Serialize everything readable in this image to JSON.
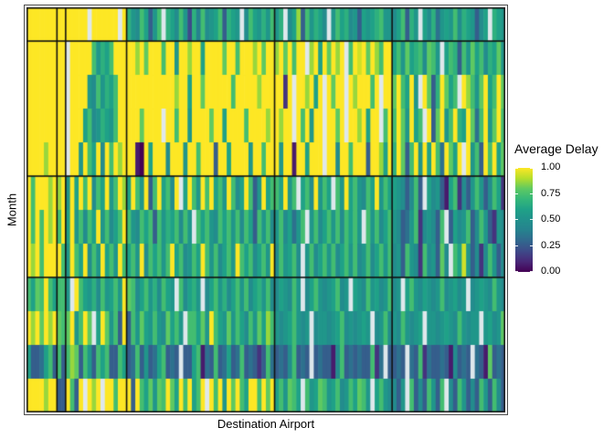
{
  "figure": {
    "background_color": "#ffffff",
    "panel_border_color": "#1a1a1a",
    "outer_border_color": "#4d4d4d"
  },
  "chart_data": {
    "type": "heatmap",
    "title": "",
    "xlabel": "Destination Airport",
    "ylabel": "Month",
    "legend_title": "Average Delay",
    "legend_labels": [
      "1.00",
      "0.75",
      "0.50",
      "0.25",
      "0.00"
    ],
    "legend_breaks": [
      1.0,
      0.75,
      0.5,
      0.25,
      0.0
    ],
    "value_domain": [
      0,
      1
    ],
    "x_tick_labels_shown": false,
    "y_tick_labels_shown": false,
    "grid": false,
    "legend_position": "right",
    "n_rows": 12,
    "n_cols": 110,
    "color_scale": {
      "name": "viridis",
      "stops": [
        "#440154",
        "#482878",
        "#3e4a89",
        "#31688e",
        "#26828e",
        "#21918c",
        "#1fa187",
        "#35b779",
        "#5ec962",
        "#b5de2b",
        "#fde725"
      ],
      "na_color": "#dfe8ec"
    },
    "encoding": "Each character of a segment string is one heatmap cell, left to right. Hex digit 0-f maps to Average Delay value digit/15 (0.00-1.00, viridis colored). '.' means missing value (white). Rows are months 1-12 top to bottom; column segments A-F are the airport groups left to right.",
    "col_group_order": [
      "A",
      "B",
      "C",
      "D",
      "E",
      "F"
    ],
    "col_group_sizes": {
      "A": 7,
      "B": 2,
      "C": 14,
      "D": 34,
      "E": 27,
      "F": 26
    },
    "row_group_breaks_after": [
      1,
      5,
      8
    ],
    "col_group_breaks_at": [
      7,
      9,
      23,
      57,
      84
    ],
    "rows": [
      {
        "month": 1,
        "segments": {
          "A": "fffffff",
          "B": "ff",
          "C": "fffff.ffffff.f",
          "D": "a87b948b.a97b83a6b789b4a98.7b98a8b",
          "E": "8a.79d4b8a97.8b9a784989ab88",
          "F": "79b4a8.97a5898b7a98479.a98"
        }
      },
      {
        "month": 2,
        "segments": {
          "A": "fffffff",
          "B": "ff",
          "C": ".fffffb8a9bfff",
          "D": "ffdfcfffbff8ffdff9ffffcffbfffdfcff",
          "E": "dfcfbff.df9fcfdf.bfefcfdbff",
          "F": "9b8c9ab7cb8.9ba4b8c9b7a9c8"
        }
      },
      {
        "month": 3,
        "segments": {
          "A": "fffffff",
          "B": "ff",
          "C": ".ffff87b8a9bff",
          "D": "fffffffffffdff9ffcffffffbfffffdfff",
          "E": "ff2f.ffdf9f.fcff.fdfffbf.ff",
          "F": "cfb9f8.fc4afc9b.fdb8cf9bfc"
        }
      },
      {
        "month": 4,
        "segments": {
          "A": "fffffff",
          "B": "ff",
          "C": ".fff9b78a98bff",
          "D": "fffcffff.ffbff8ffffcff9ffffbffffdf",
          "E": "fdff.fbf8ff.ffcf.ffdf9ff.bf",
          "F": "bfc8f9b.f4cf8bfa9fc5bf8cfb"
        }
      },
      {
        "month": 5,
        "segments": {
          "A": "ffffdff",
          "B": "ff",
          "C": ".ff8fb9f7fbfdf",
          "D": "ff10f9fff7fff8ffbfff4ff9ffff8ffbff",
          "E": "f8ff1ff9fff.ff7ffbfff4ffd9f",
          "F": "afc4bf8f9fb5fc9f.f8b4fbf9c"
        }
      },
      {
        "month": 6,
        "segments": {
          "A": "fbfffdf",
          "B": "df",
          "C": "8f9fbf7b9f8bfd",
          "D": "9fb8f4bf9b7f.9fb8fbf9b8fb79fb48f9b",
          "E": "b9f8b.9b7f8b9.b8f9b87b9f8b9",
          "F": "98747b4.978419b2748b847b92"
        }
      },
      {
        "month": 7,
        "segments": {
          "A": "fbfbfdf",
          "B": "bf",
          "C": "9f8b7b9f8b79bf",
          "D": "b87b9b4b8a9b7b8.b9b87b9b8b7b94b8b7",
          "E": "8b7958b.8b79b8b7b9b8.b8b79b",
          "F": "87458b27874b.4978b47b84287"
        }
      },
      {
        "month": 8,
        "segments": {
          "A": "fdfbfff",
          "B": "fb",
          "C": "8fb9f7b8f9b8fb",
          "D": "9b8f7b9b8bf9b78b9fb8b79b8fb9b79b8f",
          "E": "7b89b7.8b79b8b79b8b78b79b8b",
          "F": "784b872b784c7.b9e84727b847"
        }
      },
      {
        "month": 9,
        "segments": {
          "A": "b9cbfb9",
          "B": "bb",
          "C": "8.fb98a7b89b8f",
          "D": "cb79b8a7b98.b79a8.79b8a79b8b79a8b7",
          "E": "7987b8.79b8789b78.987b8978b",
          "F": "78.9b879878b78978.78987b87"
        }
      },
      {
        "month": 10,
        "segments": {
          "A": "fdfcfdf",
          "B": "cb",
          "C": "cf8bfc.9fc8b4f",
          "D": "4b8c98b87c9b8.bb9c8fb98c8b97b8c9db",
          "E": "8789b878.788789b787898.78b7",
          "F": "87b8789.8878987b8788.8978c"
        }
      },
      {
        "month": 11,
        "segments": {
          "A": "94459b4",
          "B": "b4",
          "C": "bdc4b84b9b44b9",
          "D": "45b48459b454.449b154b45945b45424b5",
          "E": "4547b454.454417b454544b25.4",
          "F": "454.54b25445417454.541c454"
        }
      },
      {
        "month": 12,
        "segments": {
          "A": "ffffdff",
          "B": "44",
          "C": "fb4f.fdf.ffbff",
          "D": "f4fb9c8cbfc9fbf9bf.fbf8fcfb9ffbfcf",
          "E": "9b8cb9.b89cb89b78b9cb8.9b87",
          "F": "748.b474b84b.74b8474b84b74"
        }
      }
    ]
  }
}
